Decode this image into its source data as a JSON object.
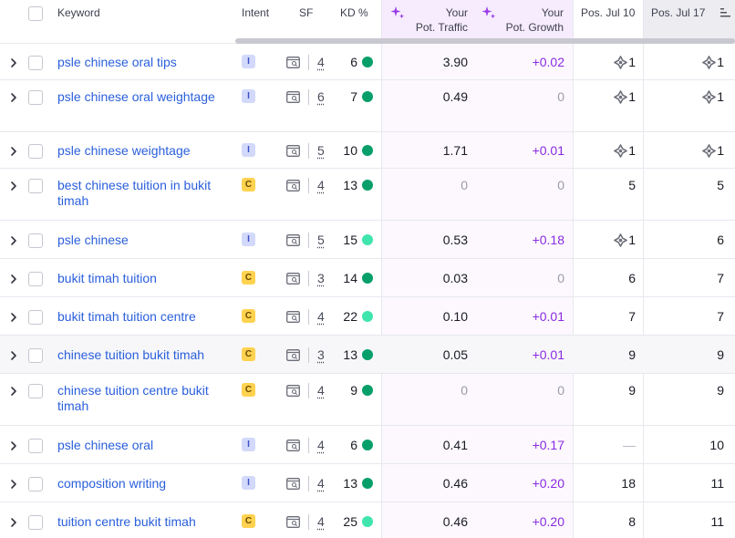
{
  "header": {
    "keyword": "Keyword",
    "intent": "Intent",
    "sf": "SF",
    "kd": "KD %",
    "pot_traffic_1": "Your",
    "pot_traffic_2": "Pot. Traffic",
    "pot_growth_1": "Your",
    "pot_growth_2": "Pot. Growth",
    "pos_jul10": "Pos. Jul 10",
    "pos_jul17": "Pos. Jul 17"
  },
  "colors": {
    "kd_green": "#069f69",
    "kd_light": "#3fe5ad",
    "link_blue": "#2a5fdb",
    "growth_purple": "#8a2be2"
  },
  "rows": [
    {
      "keyword": "psle chinese oral tips",
      "intent": "I",
      "sf": "4",
      "kd": "6",
      "kd_color": "green",
      "traffic": "3.90",
      "growth": "+0.02",
      "pos10": "1",
      "pos10_feat": true,
      "pos17": "1",
      "pos17_feat": true
    },
    {
      "keyword": "psle chinese oral weightage",
      "intent": "I",
      "sf": "6",
      "kd": "7",
      "kd_color": "green",
      "traffic": "0.49",
      "growth": "0",
      "pos10": "1",
      "pos10_feat": true,
      "pos17": "1",
      "pos17_feat": true
    },
    {
      "keyword": "psle chinese weightage",
      "intent": "I",
      "sf": "5",
      "kd": "10",
      "kd_color": "green",
      "traffic": "1.71",
      "growth": "+0.01",
      "pos10": "1",
      "pos10_feat": true,
      "pos17": "1",
      "pos17_feat": true
    },
    {
      "keyword": "best chinese tuition in bukit timah",
      "intent": "C",
      "sf": "4",
      "kd": "13",
      "kd_color": "green",
      "traffic": "0",
      "growth": "0",
      "pos10": "5",
      "pos10_feat": false,
      "pos17": "5",
      "pos17_feat": false
    },
    {
      "keyword": "psle chinese",
      "intent": "I",
      "sf": "5",
      "kd": "15",
      "kd_color": "light",
      "traffic": "0.53",
      "growth": "+0.18",
      "pos10": "1",
      "pos10_feat": true,
      "pos17": "6",
      "pos17_feat": false
    },
    {
      "keyword": "bukit timah tuition",
      "intent": "C",
      "sf": "3",
      "kd": "14",
      "kd_color": "green",
      "traffic": "0.03",
      "growth": "0",
      "pos10": "6",
      "pos10_feat": false,
      "pos17": "7",
      "pos17_feat": false
    },
    {
      "keyword": "bukit timah tuition centre",
      "intent": "C",
      "sf": "4",
      "kd": "22",
      "kd_color": "light",
      "traffic": "0.10",
      "growth": "+0.01",
      "pos10": "7",
      "pos10_feat": false,
      "pos17": "7",
      "pos17_feat": false
    },
    {
      "keyword": "chinese tuition bukit timah",
      "intent": "C",
      "sf": "3",
      "kd": "13",
      "kd_color": "green",
      "traffic": "0.05",
      "growth": "+0.01",
      "pos10": "9",
      "pos10_feat": false,
      "pos17": "9",
      "pos17_feat": false
    },
    {
      "keyword": "chinese tuition centre bukit timah",
      "intent": "C",
      "sf": "4",
      "kd": "9",
      "kd_color": "green",
      "traffic": "0",
      "growth": "0",
      "pos10": "9",
      "pos10_feat": false,
      "pos17": "9",
      "pos17_feat": false
    },
    {
      "keyword": "psle chinese oral",
      "intent": "I",
      "sf": "4",
      "kd": "6",
      "kd_color": "green",
      "traffic": "0.41",
      "growth": "+0.17",
      "pos10": "—",
      "pos10_feat": false,
      "pos17": "10",
      "pos17_feat": false
    },
    {
      "keyword": "composition writing",
      "intent": "I",
      "sf": "4",
      "kd": "13",
      "kd_color": "green",
      "traffic": "0.46",
      "growth": "+0.20",
      "pos10": "18",
      "pos10_feat": false,
      "pos17": "11",
      "pos17_feat": false
    },
    {
      "keyword": "tuition centre bukit timah",
      "intent": "C",
      "sf": "4",
      "kd": "25",
      "kd_color": "light",
      "traffic": "0.46",
      "growth": "+0.20",
      "pos10": "8",
      "pos10_feat": false,
      "pos17": "11",
      "pos17_feat": false
    }
  ]
}
